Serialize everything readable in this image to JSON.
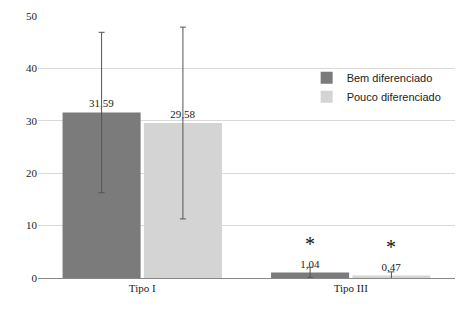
{
  "chart_data": {
    "type": "bar",
    "categories": [
      "Tipo I",
      "Tipo III"
    ],
    "series": [
      {
        "name": "Bem diferenciado",
        "color": "#7b7b7b",
        "values": [
          31.59,
          1.04
        ],
        "value_labels": [
          "31,59",
          "1,04"
        ],
        "errors": [
          15.3,
          1.0
        ],
        "significance": [
          null,
          "*"
        ]
      },
      {
        "name": "Pouco diferenciado",
        "color": "#d4d4d4",
        "values": [
          29.58,
          0.47
        ],
        "value_labels": [
          "29,58",
          "0,47"
        ],
        "errors": [
          18.3,
          0.7
        ],
        "significance": [
          null,
          "*"
        ]
      }
    ],
    "ylim": [
      0,
      50
    ],
    "yticks": [
      0,
      10,
      20,
      30,
      40,
      50
    ],
    "grid": true,
    "legend": "upper right",
    "data_labels": true
  }
}
